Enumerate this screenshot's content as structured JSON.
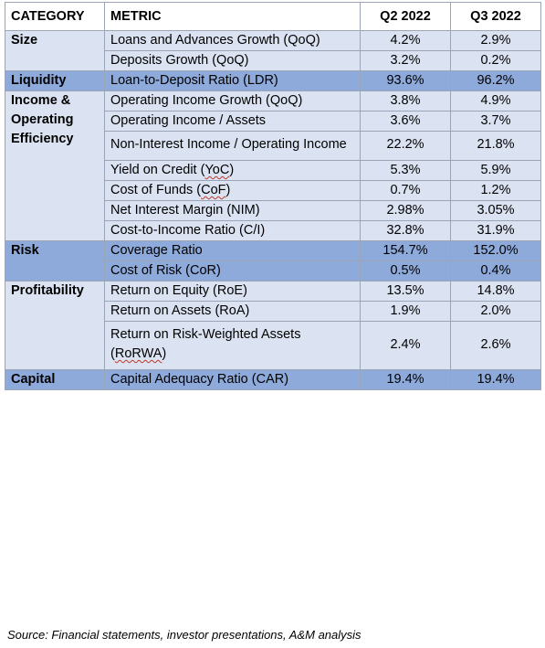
{
  "table": {
    "headers": {
      "category": "CATEGORY",
      "metric": "METRIC",
      "q2": "Q2 2022",
      "q3": "Q3 2022"
    },
    "size": {
      "category": "Size",
      "rows": [
        {
          "metric": "Loans and Advances Growth (QoQ)",
          "q2": "4.2%",
          "q3": "2.9%"
        },
        {
          "metric": "Deposits Growth (QoQ)",
          "q2": "3.2%",
          "q3": "0.2%"
        }
      ]
    },
    "liquidity": {
      "category": "Liquidity",
      "rows": [
        {
          "metric": "Loan-to-Deposit Ratio (LDR)",
          "q2": "93.6%",
          "q3": "96.2%"
        }
      ]
    },
    "income": {
      "category": "Income & Operating Efficiency",
      "rows": [
        {
          "metric": "Operating Income Growth (QoQ)",
          "q2": "3.8%",
          "q3": "4.9%"
        },
        {
          "metric": "Operating Income / Assets",
          "q2": "3.6%",
          "q3": "3.7%"
        },
        {
          "metric": "Non-Interest Income / Operating Income",
          "q2": "22.2%",
          "q3": "21.8%"
        },
        {
          "metric_prefix": "Yield on Credit (",
          "metric_abbr": "YoC",
          "metric_suffix": ")",
          "q2": "5.3%",
          "q3": "5.9%"
        },
        {
          "metric_prefix": "Cost of Funds (",
          "metric_abbr": "CoF",
          "metric_suffix": ")",
          "q2": "0.7%",
          "q3": "1.2%"
        },
        {
          "metric": "Net Interest Margin (NIM)",
          "q2": "2.98%",
          "q3": "3.05%"
        },
        {
          "metric": "Cost-to-Income Ratio (C/I)",
          "q2": "32.8%",
          "q3": "31.9%"
        }
      ]
    },
    "risk": {
      "category": "Risk",
      "rows": [
        {
          "metric": "Coverage Ratio",
          "q2": "154.7%",
          "q3": "152.0%"
        },
        {
          "metric": "Cost of Risk (CoR)",
          "q2": "0.5%",
          "q3": "0.4%"
        }
      ]
    },
    "profitability": {
      "category": "Profitability",
      "rows": [
        {
          "metric": "Return on Equity (RoE)",
          "q2": "13.5%",
          "q3": "14.8%"
        },
        {
          "metric": "Return on Assets (RoA)",
          "q2": "1.9%",
          "q3": "2.0%"
        },
        {
          "metric_prefix": "Return on Risk-Weighted Assets (",
          "metric_abbr": "RoRWA",
          "metric_suffix": ")",
          "q2": "2.4%",
          "q3": "2.6%"
        }
      ]
    },
    "capital": {
      "category": "Capital",
      "rows": [
        {
          "metric": "Capital Adequacy Ratio (CAR)",
          "q2": "19.4%",
          "q3": "19.4%"
        }
      ]
    }
  },
  "colors": {
    "light_band": "#dbe3f2",
    "dark_band": "#8eaadb",
    "border": "#9aa6b8"
  },
  "source": "Source: Financial statements, investor presentations, A&M analysis"
}
